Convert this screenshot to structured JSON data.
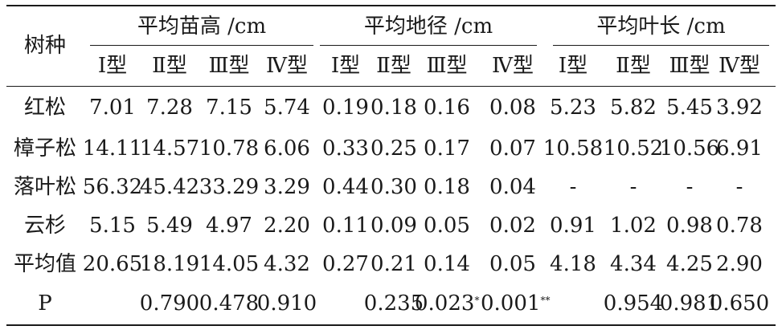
{
  "table": {
    "corner_label": "树种",
    "groups": [
      "平均苗高 /cm",
      "平均地径 /cm",
      "平均叶长 /cm"
    ],
    "types": [
      "Ⅰ型",
      "Ⅱ型",
      "Ⅲ型",
      "Ⅳ型"
    ],
    "rows": [
      {
        "species": "红松",
        "values": [
          "7.01",
          "7.28",
          "7.15",
          "5.74",
          "0.19",
          "0.18",
          "0.16",
          "0.08",
          "5.23",
          "5.82",
          "5.45",
          "3.92"
        ]
      },
      {
        "species": "樟子松",
        "values": [
          "14.11",
          "14.57",
          "10.78",
          "6.06",
          "0.33",
          "0.25",
          "0.17",
          "0.07",
          "10.58",
          "10.52",
          "10.56",
          "6.91"
        ]
      },
      {
        "species": "落叶松",
        "values": [
          "56.32",
          "45.42",
          "33.29",
          "3.29",
          "0.44",
          "0.30",
          "0.18",
          "0.04",
          "-",
          "-",
          "-",
          "-"
        ]
      },
      {
        "species": "云杉",
        "values": [
          "5.15",
          "5.49",
          "4.97",
          "2.20",
          "0.11",
          "0.09",
          "0.05",
          "0.02",
          "0.91",
          "1.02",
          "0.98",
          "0.78"
        ]
      },
      {
        "species": "平均值",
        "values": [
          "20.65",
          "18.19",
          "14.05",
          "4.32",
          "0.27",
          "0.21",
          "0.14",
          "0.05",
          "4.18",
          "4.34",
          "4.25",
          "2.90"
        ]
      }
    ],
    "p_row": {
      "label": "P",
      "values": [
        "",
        "0.790",
        "0.478",
        "0.910",
        "",
        "0.235",
        "0.023",
        "0.001",
        "",
        "0.954",
        "0.981",
        "0.650"
      ],
      "marks": [
        "",
        "",
        "",
        "",
        "",
        "",
        "*",
        "**",
        "",
        "",
        "",
        ""
      ]
    }
  }
}
